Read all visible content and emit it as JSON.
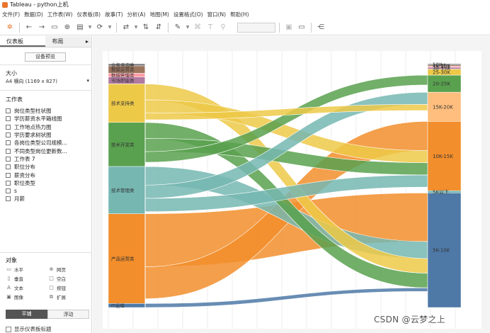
{
  "window": {
    "title": "Tableau - python上机"
  },
  "menu": [
    "文件(F)",
    "数据(D)",
    "工作表(W)",
    "仪表板(B)",
    "故事(T)",
    "分析(A)",
    "地图(M)",
    "设置格式(O)",
    "窗口(N)",
    "帮助(H)"
  ],
  "toolbar": {
    "icons": [
      "tableau-logo-icon",
      "undo-icon",
      "redo-icon",
      "save-icon",
      "new-datasource-icon",
      "new-sheet-icon",
      "refresh-icon",
      "swap-icon",
      "sort-asc-icon",
      "sort-desc-icon",
      "highlight-icon",
      "group-icon",
      "label-icon",
      "pin-icon",
      "fit-icon",
      "presentation-icon",
      "share-icon"
    ]
  },
  "sidebar": {
    "tabs": [
      "仪表板",
      "布局"
    ],
    "device_preview": "设备预览",
    "size_header": "大小",
    "size_value": "A4 横向 (1169 x 827)",
    "sheets_header": "工作表",
    "sheets": [
      "岗位类型柱状图",
      "学历薪资水平箱线图",
      "工作地点热力图",
      "学历要求树状图",
      "各岗位类型公司规模...",
      "不同类型岗位更新数...",
      "工作表 7",
      "职位分布",
      "薪资分布",
      "职位类型",
      "s",
      "月薪"
    ],
    "objects_header": "对象",
    "objects": [
      {
        "icon": "horizontal-icon",
        "label": "水平"
      },
      {
        "icon": "web-page-icon",
        "label": "网页"
      },
      {
        "icon": "vertical-icon",
        "label": "垂直"
      },
      {
        "icon": "blank-icon",
        "label": "空白"
      },
      {
        "icon": "text-icon",
        "label": "文本"
      },
      {
        "icon": "button-icon",
        "label": "按钮"
      },
      {
        "icon": "image-icon",
        "label": "图像"
      },
      {
        "icon": "extension-icon",
        "label": "扩展"
      }
    ],
    "tiled": "平铺",
    "floating": "浮动",
    "show_title": "显示仪表板标题"
  },
  "chart_data": {
    "type": "sankey",
    "left_nodes": [
      {
        "label": "业务咨询类",
        "value": 0.8,
        "color": "#7a7a7a"
      },
      {
        "label": "数据运营类",
        "value": 2.8,
        "color": "#9c755f"
      },
      {
        "label": "数据管理类",
        "value": 1.4,
        "color": "#ff9da7"
      },
      {
        "label": "市场职能类",
        "value": 2.6,
        "color": "#b07aa1"
      },
      {
        "label": "技术支持类",
        "value": 14.5,
        "color": "#edc948"
      },
      {
        "label": "技术开发类",
        "value": 16.6,
        "color": "#59a14f"
      },
      {
        "label": "技术管理类",
        "value": 17.8,
        "color": "#76b7b2"
      },
      {
        "label": "产品运营类",
        "value": 33.8,
        "color": "#f28e2b"
      },
      {
        "label": "IT运维",
        "value": 1.5,
        "color": "#4e79a7"
      }
    ],
    "right_nodes": [
      {
        "label": "50K+",
        "value": 0.5,
        "color": "#7a7a7a"
      },
      {
        "label": "40-50K",
        "value": 0.5,
        "color": "#9c755f"
      },
      {
        "label": "35-40K",
        "value": 0.5,
        "color": "#ff9da7"
      },
      {
        "label": "30-35K",
        "value": 0.7,
        "color": "#b07aa1"
      },
      {
        "label": "25-30K",
        "value": 2.5,
        "color": "#edc948"
      },
      {
        "label": "20-25K",
        "value": 7.0,
        "color": "#59a14f"
      },
      {
        "label": "15K-20K",
        "value": 12.0,
        "color": "#ffbe7d"
      },
      {
        "label": "10K-15K",
        "value": 28.5,
        "color": "#f28e2b"
      },
      {
        "label": "5K以下",
        "value": 0.9,
        "color": "#76b7b2"
      },
      {
        "label": "5K-10K",
        "value": 47.1,
        "color": "#4e79a7"
      }
    ],
    "flows": [
      {
        "from": "技术支持类",
        "to": "10K-15K",
        "value": 5
      },
      {
        "from": "技术支持类",
        "to": "5K-10K",
        "value": 6
      },
      {
        "from": "技术支持类",
        "to": "15K-20K",
        "value": 2.5
      },
      {
        "from": "技术开发类",
        "to": "20-25K",
        "value": 4
      },
      {
        "from": "技术开发类",
        "to": "10K-15K",
        "value": 5
      },
      {
        "from": "技术开发类",
        "to": "5K-10K",
        "value": 6
      },
      {
        "from": "技术管理类",
        "to": "15K-20K",
        "value": 5
      },
      {
        "from": "技术管理类",
        "to": "10K-15K",
        "value": 5
      },
      {
        "from": "技术管理类",
        "to": "5K-10K",
        "value": 7
      },
      {
        "from": "产品运营类",
        "to": "10K-15K",
        "value": 12
      },
      {
        "from": "产品运营类",
        "to": "5K-10K",
        "value": 20
      },
      {
        "from": "IT运维",
        "to": "5K-10K",
        "value": 1.5
      }
    ]
  },
  "watermark": "CSDN @云梦之上"
}
